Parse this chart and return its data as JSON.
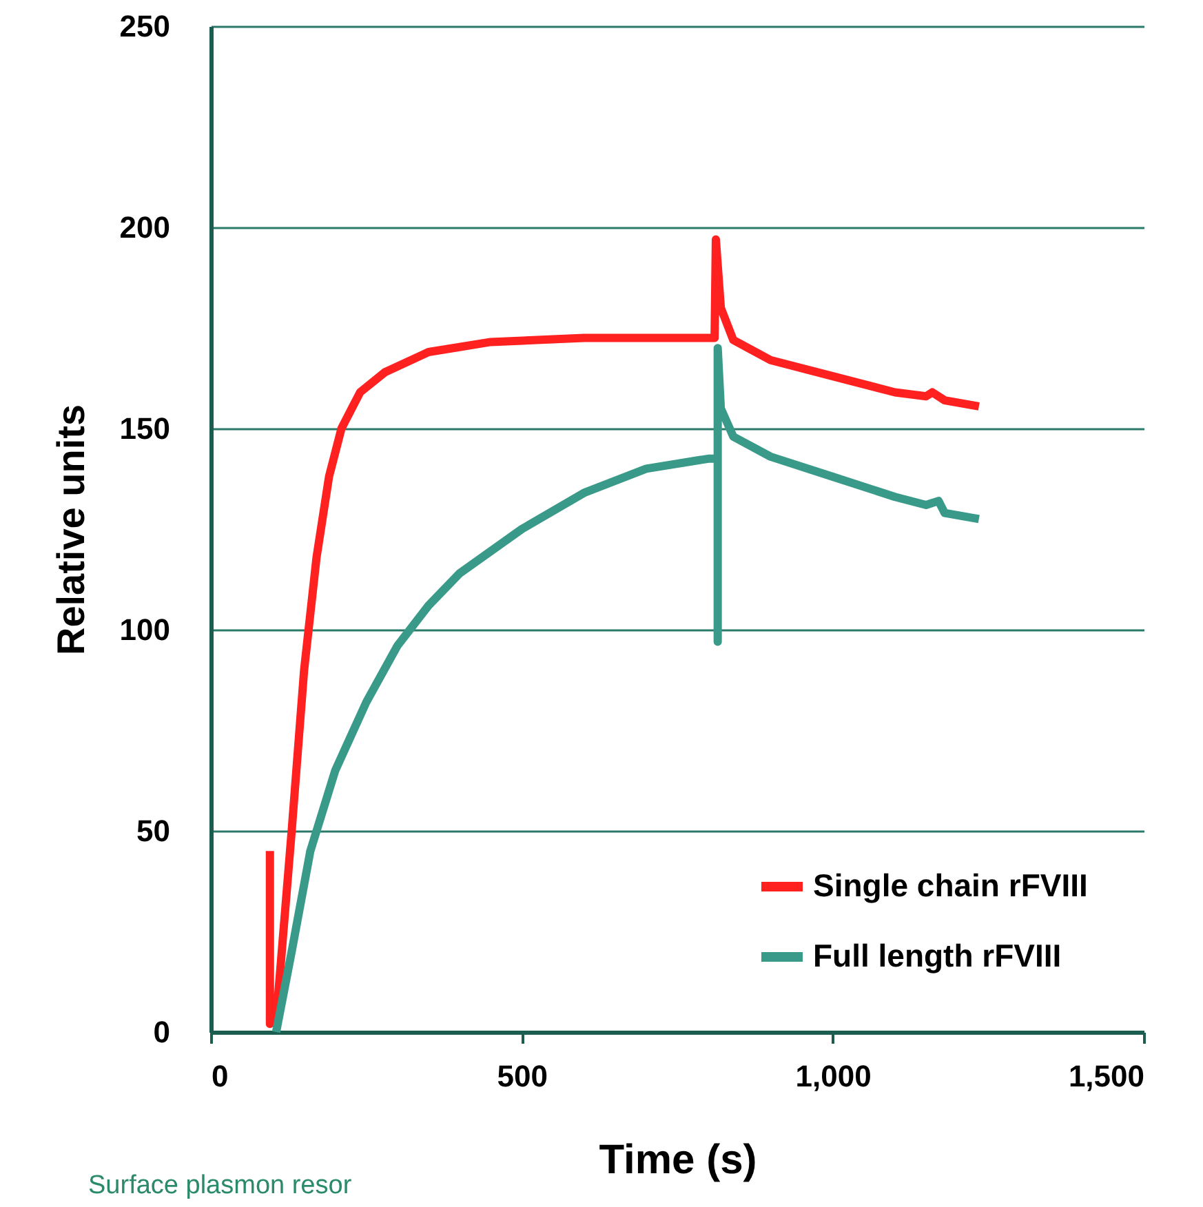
{
  "chart_data": {
    "type": "line",
    "xlabel": "Time (s)",
    "ylabel": "Relative units",
    "xlim": [
      0,
      1500
    ],
    "xticks": [
      0,
      500,
      {
        "value": 1000,
        "label": "1,000"
      },
      {
        "value": 1500,
        "label": "1,500"
      }
    ],
    "ylim": [
      0,
      250
    ],
    "yticks": [
      0,
      50,
      100,
      150,
      200,
      250
    ],
    "grid": "y",
    "legend": "bottom right",
    "marker": "none",
    "line_style": "solid",
    "annotations": [
      "Surface plasmon resor"
    ],
    "series": [
      {
        "name": "Single chain rFVIII",
        "color": "#ff2020",
        "x": [
          95,
          95,
          105,
          130,
          150,
          170,
          190,
          210,
          240,
          280,
          350,
          450,
          600,
          810,
          812,
          820,
          840,
          900,
          1000,
          1100,
          1150,
          1160,
          1180,
          1235
        ],
        "values": [
          45,
          2,
          3,
          50,
          90,
          118,
          138,
          150,
          159,
          164,
          169,
          171.5,
          172.5,
          172.5,
          197,
          180,
          172,
          167,
          163,
          159,
          158,
          159,
          157,
          155.5
        ]
      },
      {
        "name": "Full length rFVIII",
        "color": "#3a9a8a",
        "x": [
          105,
          130,
          160,
          200,
          250,
          300,
          350,
          400,
          500,
          600,
          700,
          800,
          815,
          815,
          815,
          820,
          840,
          900,
          1000,
          1100,
          1150,
          1170,
          1180,
          1235
        ],
        "values": [
          0,
          20,
          45,
          65,
          82,
          96,
          106,
          114,
          125,
          134,
          140,
          142.5,
          142.5,
          97,
          170,
          155,
          148,
          143,
          138,
          133,
          131,
          132,
          129,
          127.5
        ]
      }
    ]
  }
}
